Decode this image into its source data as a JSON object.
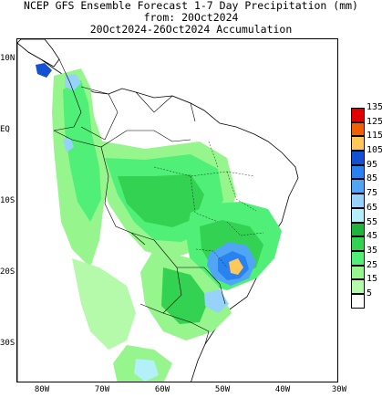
{
  "title": {
    "line1": "NCEP GFS Ensemble Forecast 1-7 Day Precipitation (mm)",
    "line2": "from: 20Oct2024",
    "line3": "20Oct2024-26Oct2024 Accumulation"
  },
  "lat_labels": [
    "10N",
    "EQ",
    "10S",
    "20S",
    "30S"
  ],
  "lon_labels": [
    "80W",
    "70W",
    "60W",
    "50W",
    "40W",
    "30W"
  ],
  "legend": {
    "labels": [
      "135",
      "125",
      "115",
      "105",
      "95",
      "85",
      "75",
      "65",
      "55",
      "45",
      "35",
      "25",
      "15",
      "5"
    ],
    "colors": [
      "#e00000",
      "#f06000",
      "#ffc858",
      "#1450d2",
      "#2882f0",
      "#50a6f5",
      "#96d2fa",
      "#b4f0fa",
      "#1eb43c",
      "#34d252",
      "#50f078",
      "#96f58c",
      "#b4faaa",
      "#ffffff"
    ]
  },
  "colors": {
    "ocean": "#ffffff",
    "border": "#000000"
  }
}
